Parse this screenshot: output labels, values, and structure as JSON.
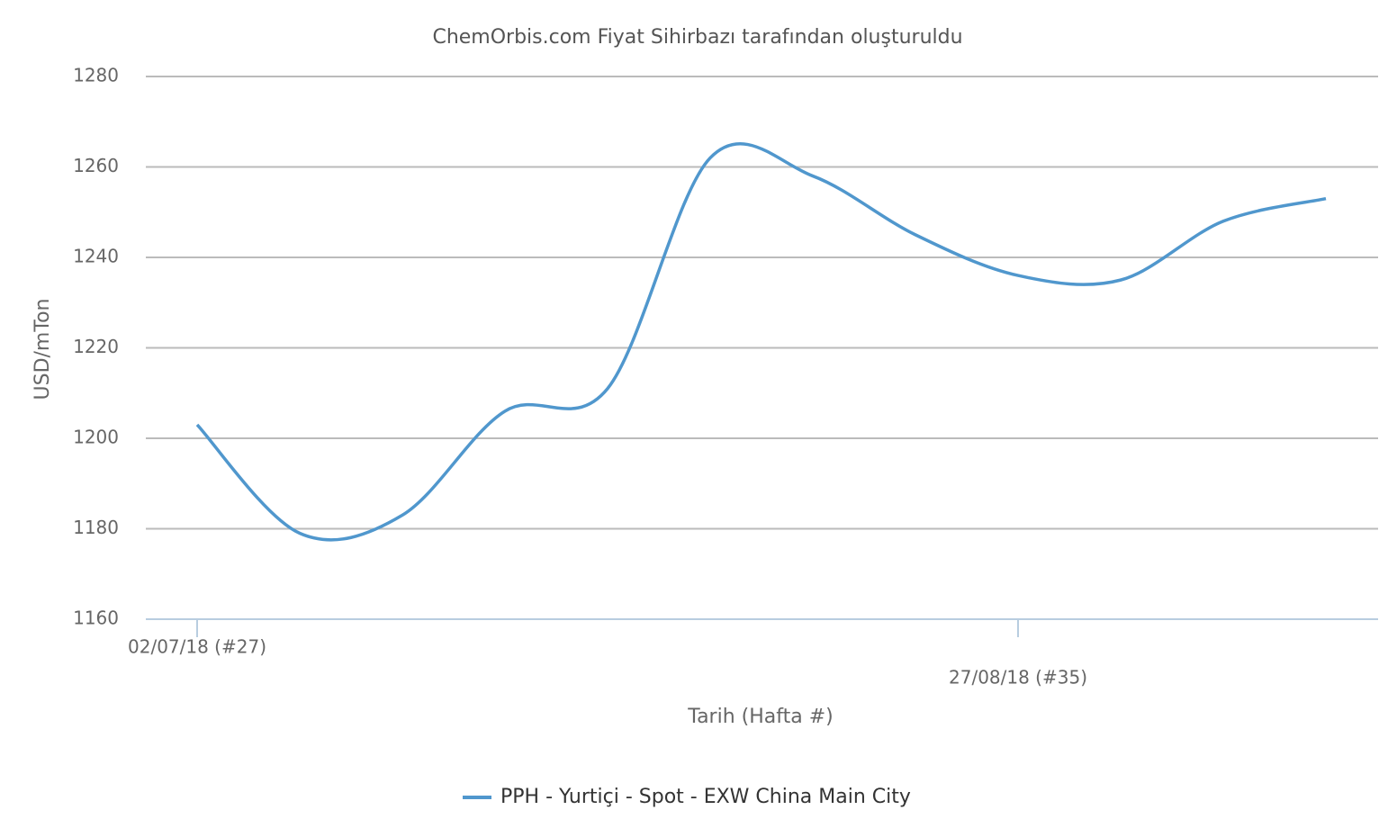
{
  "chart_data": {
    "type": "line",
    "title": "ChemOrbis.com Fiyat Sihirbazı tarafından oluşturuldu",
    "y_label": "USD/mTon",
    "x_label": "Tarih (Hafta #)",
    "categories": [
      "02/07/18 (#27)",
      null,
      null,
      null,
      null,
      null,
      null,
      null,
      "27/08/18 (#35)",
      null,
      null,
      null
    ],
    "series": [
      {
        "name": "PPH - Yurtiçi - Spot - EXW China Main City",
        "color": "#5097cd",
        "values": [
          1203,
          1179,
          1183,
          1206,
          1211,
          1262,
          1258,
          1245,
          1236,
          1235,
          1248,
          1253
        ]
      }
    ],
    "ylim": [
      1160,
      1280
    ],
    "yticks": [
      1160,
      1180,
      1200,
      1220,
      1240,
      1260,
      1280
    ],
    "grid": true,
    "legend": "bottom"
  }
}
